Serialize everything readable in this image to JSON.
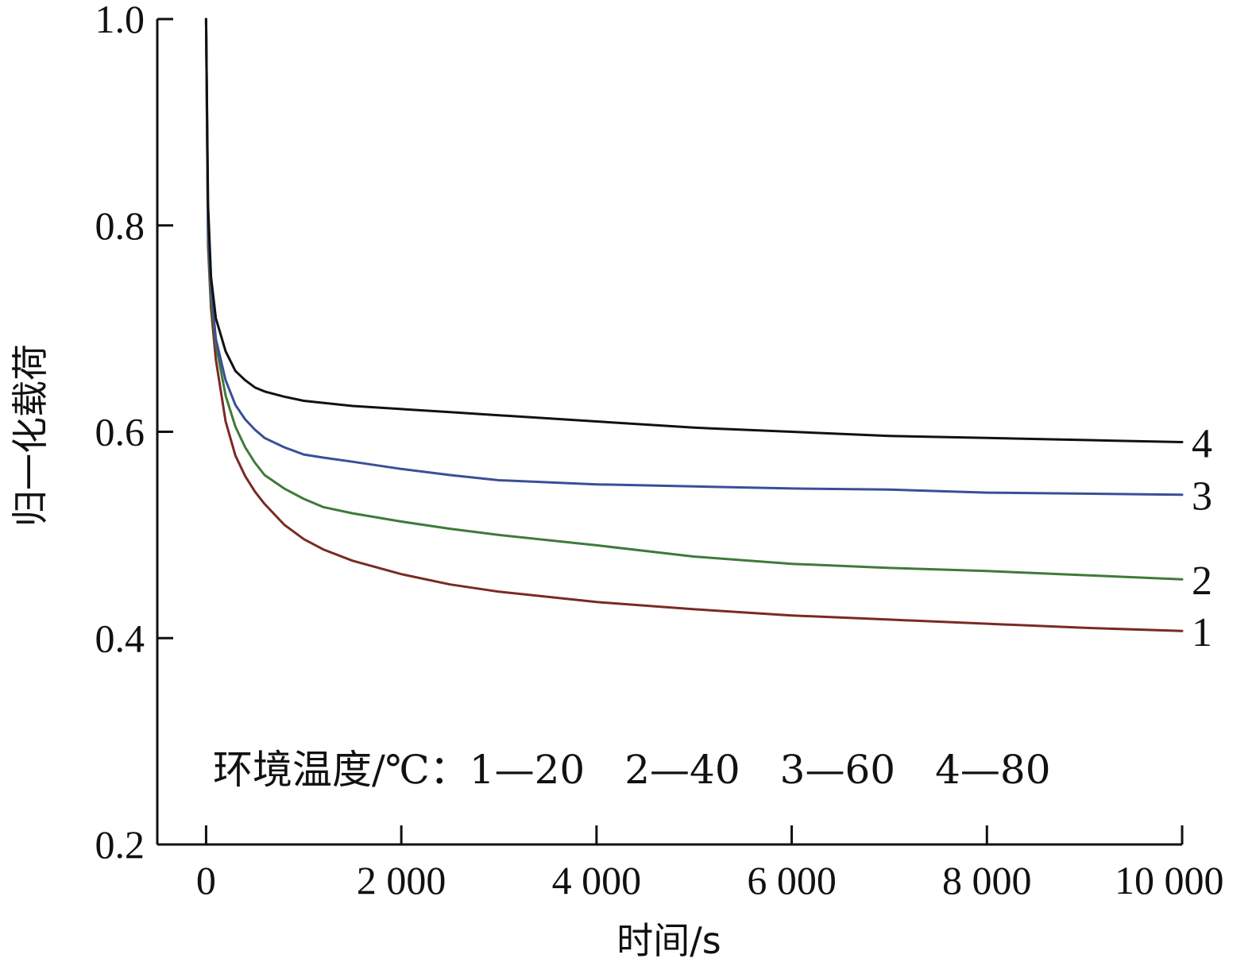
{
  "chart_data": {
    "type": "line",
    "title": "",
    "xlabel": "时间/s",
    "ylabel": "归一化载荷",
    "xlim": [
      -500,
      10000
    ],
    "ylim": [
      0.2,
      1.0
    ],
    "x_ticks": [
      0,
      2000,
      4000,
      6000,
      8000,
      10000
    ],
    "x_tick_labels": [
      "0",
      "2 000",
      "4 000",
      "6 000",
      "8 000",
      "10 000"
    ],
    "y_ticks": [
      0.2,
      0.4,
      0.6,
      0.8,
      1.0
    ],
    "y_tick_labels": [
      "0.2",
      "0.4",
      "0.6",
      "0.8",
      "1.0"
    ],
    "grid": false,
    "annotation": "环境温度/℃：1—20　2—40　3—60　4—80",
    "series": [
      {
        "label": "1",
        "color": "#7a2a24",
        "x": [
          0,
          20,
          50,
          100,
          200,
          300,
          400,
          500,
          600,
          800,
          1000,
          1200,
          1500,
          2000,
          2500,
          3000,
          4000,
          5000,
          6000,
          7000,
          8000,
          9000,
          10000
        ],
        "y": [
          1.0,
          0.78,
          0.72,
          0.67,
          0.61,
          0.577,
          0.557,
          0.542,
          0.53,
          0.51,
          0.496,
          0.486,
          0.475,
          0.462,
          0.452,
          0.445,
          0.435,
          0.428,
          0.422,
          0.418,
          0.414,
          0.41,
          0.407
        ]
      },
      {
        "label": "2",
        "color": "#3f7a3a",
        "x": [
          0,
          20,
          50,
          100,
          200,
          300,
          400,
          500,
          600,
          800,
          1000,
          1200,
          1500,
          2000,
          2500,
          3000,
          4000,
          5000,
          6000,
          7000,
          8000,
          9000,
          10000
        ],
        "y": [
          1.0,
          0.79,
          0.73,
          0.685,
          0.635,
          0.605,
          0.585,
          0.57,
          0.558,
          0.545,
          0.535,
          0.527,
          0.521,
          0.513,
          0.506,
          0.5,
          0.49,
          0.479,
          0.472,
          0.468,
          0.465,
          0.461,
          0.457
        ]
      },
      {
        "label": "3",
        "color": "#3a4f96",
        "x": [
          0,
          20,
          50,
          100,
          200,
          300,
          400,
          500,
          600,
          800,
          1000,
          1200,
          1500,
          2000,
          2500,
          3000,
          4000,
          5000,
          6000,
          7000,
          8000,
          9000,
          10000
        ],
        "y": [
          1.0,
          0.8,
          0.74,
          0.69,
          0.65,
          0.626,
          0.612,
          0.602,
          0.594,
          0.585,
          0.578,
          0.575,
          0.571,
          0.564,
          0.558,
          0.553,
          0.549,
          0.547,
          0.545,
          0.544,
          0.541,
          0.54,
          0.539
        ]
      },
      {
        "label": "4",
        "color": "#111111",
        "x": [
          0,
          20,
          50,
          100,
          200,
          300,
          400,
          500,
          600,
          800,
          1000,
          1200,
          1500,
          2000,
          2500,
          3000,
          4000,
          5000,
          6000,
          7000,
          8000,
          9000,
          10000
        ],
        "y": [
          1.0,
          0.82,
          0.75,
          0.71,
          0.678,
          0.659,
          0.65,
          0.643,
          0.639,
          0.634,
          0.63,
          0.628,
          0.625,
          0.622,
          0.619,
          0.616,
          0.61,
          0.604,
          0.6,
          0.596,
          0.594,
          0.592,
          0.59
        ]
      }
    ]
  }
}
